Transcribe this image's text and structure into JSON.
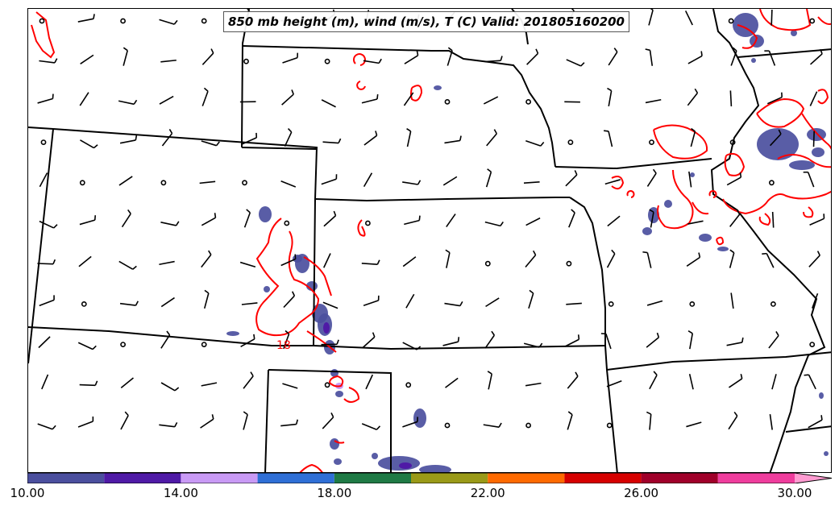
{
  "title": "850 mb height (m), wind (m/s), T (C) Valid: 201805160200",
  "contour_label": "18",
  "colorbar": {
    "ticks": [
      "10.00",
      "14.00",
      "18.00",
      "22.00",
      "26.00",
      "30.00"
    ],
    "colors": [
      "#4b4f9e",
      "#4f1aa6",
      "#c99af5",
      "#2f6fd6",
      "#1f7a45",
      "#9a9a18",
      "#ff6a00",
      "#d60000",
      "#a0002a",
      "#ef3d9d",
      "#ff9bd1"
    ]
  },
  "colors": {
    "state_border": "#000000",
    "temperature_contour": "#ff0000",
    "wind_barb": "#000000",
    "shading": "#4b4f9e"
  }
}
